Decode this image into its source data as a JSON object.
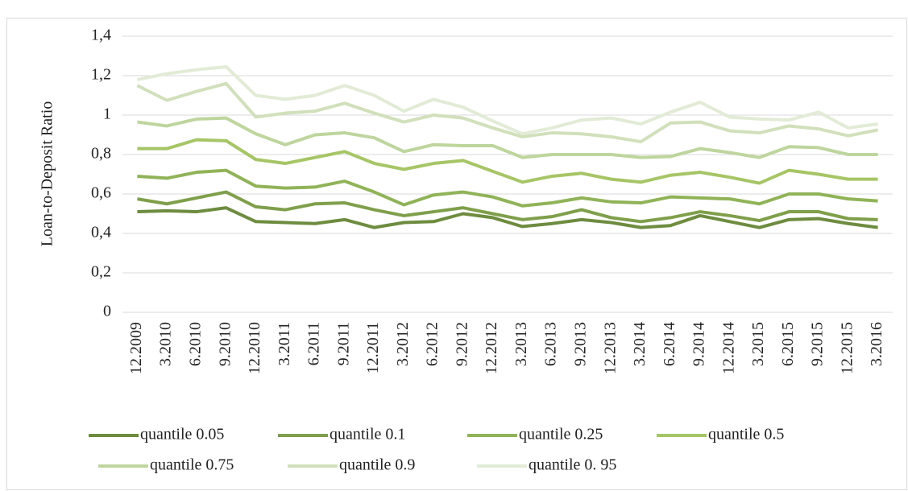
{
  "chart_data": {
    "type": "line",
    "ylabel": "Loan-to-Deposit Ratio",
    "categories": [
      "12.2009",
      "3.2010",
      "6.2010",
      "9.2010",
      "12.2010",
      "3.2011",
      "6.2011",
      "9.2011",
      "12.2011",
      "3.2012",
      "6.2012",
      "9.2012",
      "12.2012",
      "3.2013",
      "6.2013",
      "9.2013",
      "12.2013",
      "3.2014",
      "6.2014",
      "9.2014",
      "12.2014",
      "3.2015",
      "6.2015",
      "9.2015",
      "12.2015",
      "3.2016"
    ],
    "ylim": [
      0,
      1.4
    ],
    "yticks": [
      0,
      {
        "value": 0.2,
        "label": "0,2"
      },
      {
        "value": 0.4,
        "label": "0,4"
      },
      {
        "value": 0.6,
        "label": "0,6"
      },
      {
        "value": 0.8,
        "label": "0,8"
      },
      1,
      {
        "value": 1.2,
        "label": "1,2"
      },
      {
        "value": 1.4,
        "label": "1,4"
      }
    ],
    "grid": true,
    "legend": "bottom",
    "series": [
      {
        "name": "quantile 0.05",
        "color": "#6e8c3f",
        "values": [
          0.51,
          0.515,
          0.51,
          0.53,
          0.46,
          0.455,
          0.45,
          0.47,
          0.43,
          0.455,
          0.46,
          0.5,
          0.48,
          0.435,
          0.45,
          0.47,
          0.455,
          0.43,
          0.44,
          0.49,
          0.46,
          0.43,
          0.47,
          0.475,
          0.45,
          0.43
        ]
      },
      {
        "name": "quantile 0.1",
        "color": "#7f9f4b",
        "values": [
          0.575,
          0.55,
          0.58,
          0.61,
          0.535,
          0.52,
          0.55,
          0.555,
          0.52,
          0.49,
          0.51,
          0.53,
          0.5,
          0.47,
          0.485,
          0.52,
          0.48,
          0.46,
          0.48,
          0.51,
          0.49,
          0.465,
          0.51,
          0.51,
          0.475,
          0.47
        ]
      },
      {
        "name": "quantile 0.25",
        "color": "#90b358",
        "values": [
          0.69,
          0.68,
          0.71,
          0.72,
          0.64,
          0.63,
          0.635,
          0.665,
          0.61,
          0.545,
          0.595,
          0.61,
          0.585,
          0.54,
          0.555,
          0.58,
          0.56,
          0.555,
          0.585,
          0.58,
          0.575,
          0.55,
          0.6,
          0.6,
          0.575,
          0.565
        ]
      },
      {
        "name": "quantile 0.5",
        "color": "#a6c566",
        "values": [
          0.83,
          0.83,
          0.875,
          0.87,
          0.775,
          0.755,
          0.785,
          0.815,
          0.755,
          0.725,
          0.755,
          0.77,
          0.715,
          0.66,
          0.69,
          0.705,
          0.675,
          0.66,
          0.695,
          0.71,
          0.685,
          0.655,
          0.72,
          0.7,
          0.675,
          0.675
        ]
      },
      {
        "name": "quantile 0.75",
        "color": "#bed59d",
        "values": [
          0.965,
          0.945,
          0.98,
          0.985,
          0.905,
          0.85,
          0.9,
          0.91,
          0.885,
          0.815,
          0.85,
          0.845,
          0.845,
          0.785,
          0.8,
          0.8,
          0.8,
          0.785,
          0.79,
          0.83,
          0.81,
          0.785,
          0.84,
          0.835,
          0.8,
          0.8
        ]
      },
      {
        "name": "quantile 0.9",
        "color": "#d1e0bb",
        "values": [
          1.15,
          1.075,
          1.12,
          1.16,
          0.99,
          1.01,
          1.02,
          1.06,
          1.01,
          0.965,
          1.0,
          0.985,
          0.935,
          0.89,
          0.91,
          0.905,
          0.89,
          0.865,
          0.96,
          0.965,
          0.92,
          0.91,
          0.945,
          0.93,
          0.895,
          0.925
        ]
      },
      {
        "name": "quantile 0. 95",
        "color": "#e2ebd6",
        "values": [
          1.18,
          1.21,
          1.23,
          1.245,
          1.1,
          1.08,
          1.1,
          1.15,
          1.1,
          1.02,
          1.08,
          1.04,
          0.97,
          0.905,
          0.935,
          0.975,
          0.985,
          0.955,
          1.015,
          1.065,
          0.99,
          0.98,
          0.975,
          1.015,
          0.935,
          0.955
        ]
      }
    ]
  }
}
